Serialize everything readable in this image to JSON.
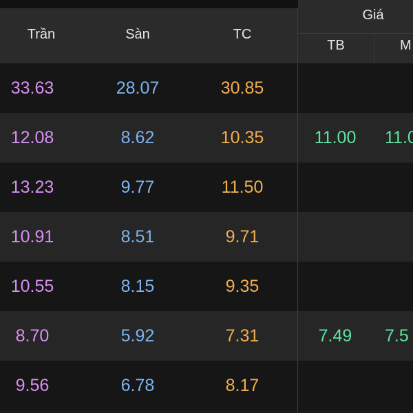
{
  "header": {
    "tran": "Trần",
    "san": "Sàn",
    "tc": "TC",
    "gia": "Giá",
    "tb": "TB",
    "m": "M"
  },
  "rows": [
    {
      "tran": "33.63",
      "san": "28.07",
      "tc": "30.85",
      "tb": "",
      "m": ""
    },
    {
      "tran": "12.08",
      "san": "8.62",
      "tc": "10.35",
      "tb": "11.00",
      "m": "11.0"
    },
    {
      "tran": "13.23",
      "san": "9.77",
      "tc": "11.50",
      "tb": "",
      "m": ""
    },
    {
      "tran": "10.91",
      "san": "8.51",
      "tc": "9.71",
      "tb": "",
      "m": ""
    },
    {
      "tran": "10.55",
      "san": "8.15",
      "tc": "9.35",
      "tb": "",
      "m": ""
    },
    {
      "tran": "8.70",
      "san": "5.92",
      "tc": "7.31",
      "tb": "7.49",
      "m": "7.5"
    },
    {
      "tran": "9.56",
      "san": "6.78",
      "tc": "8.17",
      "tb": "",
      "m": ""
    }
  ],
  "colors": {
    "ceiling": "#d68ff2",
    "floor": "#7db3ee",
    "reference": "#f0ad4e",
    "average": "#5fe3a1"
  }
}
